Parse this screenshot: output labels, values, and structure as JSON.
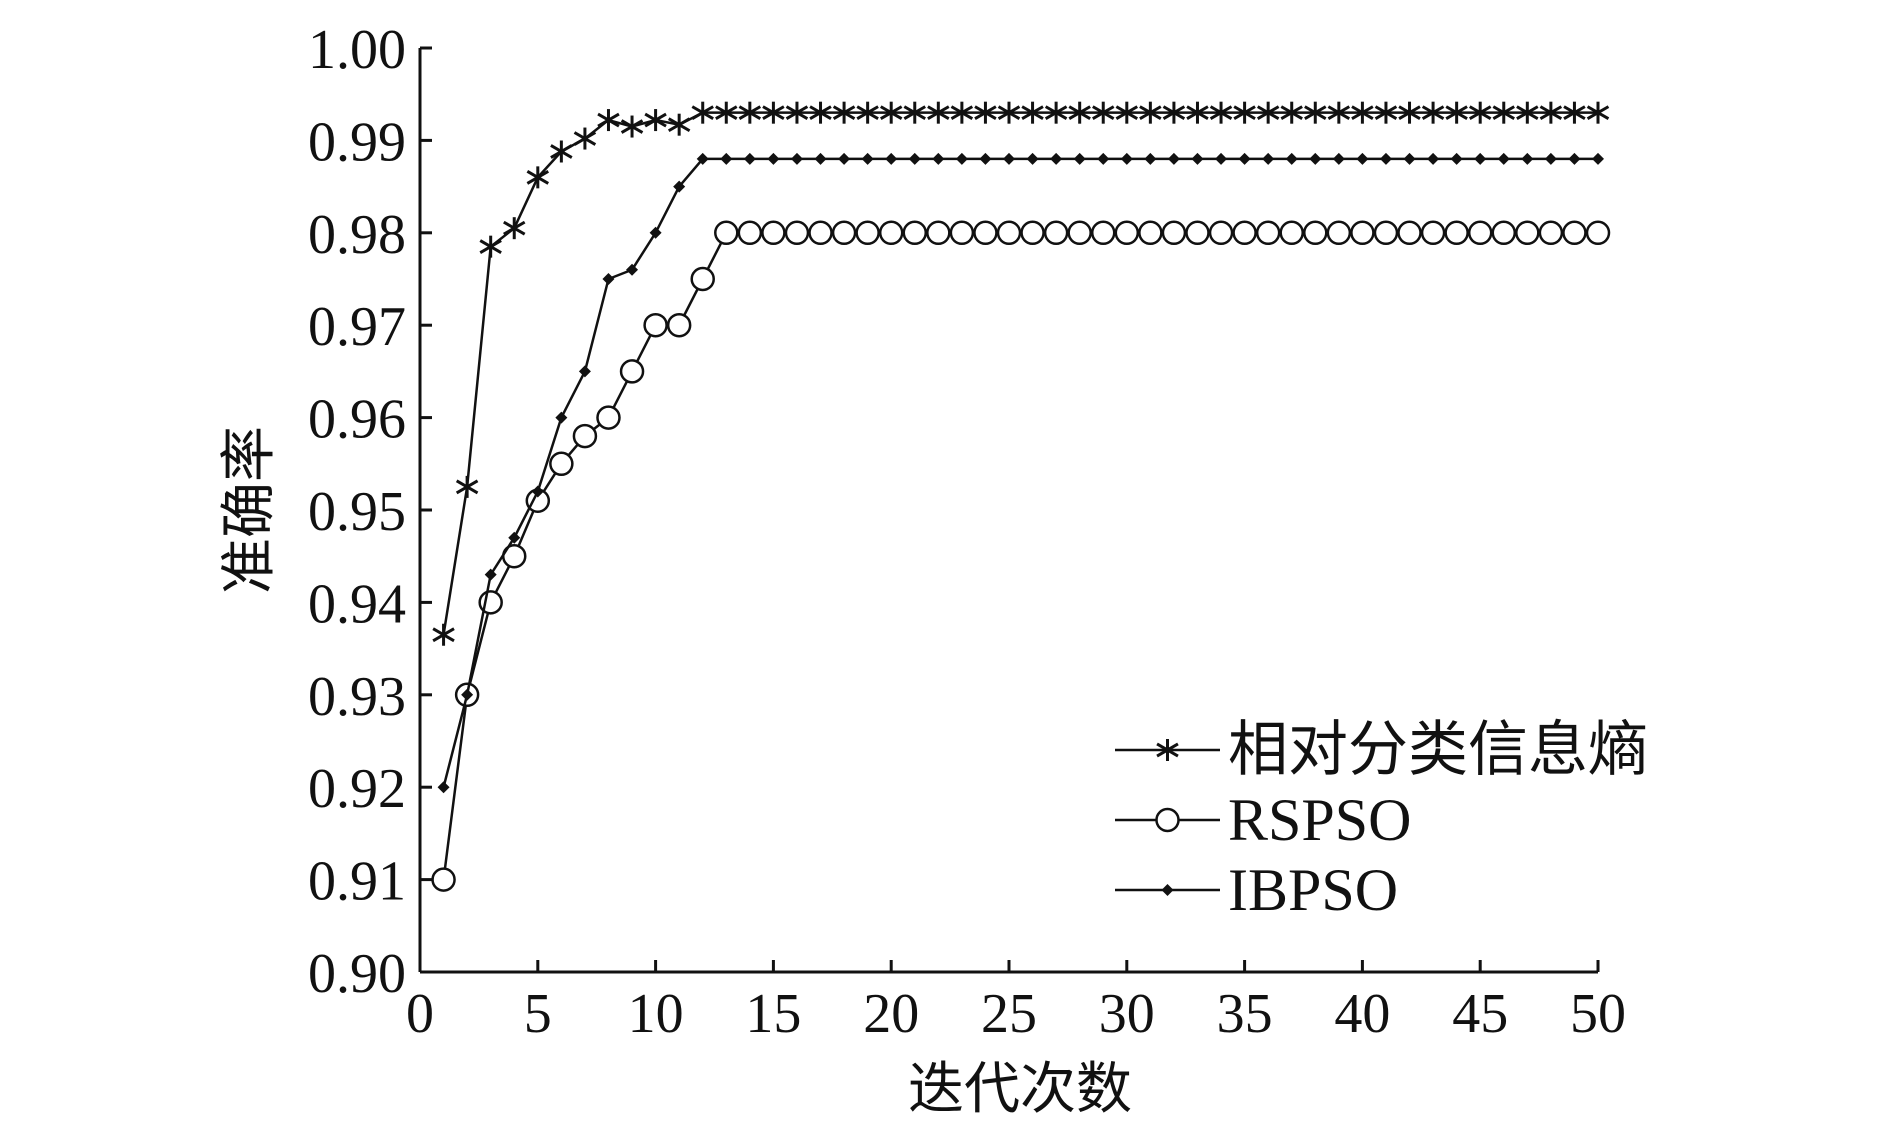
{
  "chart_data": {
    "type": "line",
    "xlabel": "迭代次数",
    "ylabel": "准确率",
    "xlim": [
      0,
      50
    ],
    "ylim": [
      0.9,
      1.0
    ],
    "xticks": [
      "0",
      "5",
      "10",
      "15",
      "20",
      "25",
      "30",
      "35",
      "40",
      "45",
      "50"
    ],
    "yticks": [
      "0.90",
      "0.91",
      "0.92",
      "0.93",
      "0.94",
      "0.95",
      "0.96",
      "0.97",
      "0.98",
      "0.99",
      "1.00"
    ],
    "grid": false,
    "legend_position": "bottom-right",
    "x": [
      1,
      2,
      3,
      4,
      5,
      6,
      7,
      8,
      9,
      10,
      11,
      12,
      13,
      14,
      15,
      16,
      17,
      18,
      19,
      20,
      21,
      22,
      23,
      24,
      25,
      26,
      27,
      28,
      29,
      30,
      31,
      32,
      33,
      34,
      35,
      36,
      37,
      38,
      39,
      40,
      41,
      42,
      43,
      44,
      45,
      46,
      47,
      48,
      49,
      50
    ],
    "series": [
      {
        "name": "相对分类信息熵",
        "marker": "asterisk",
        "values": [
          0.9365,
          0.9525,
          0.9785,
          0.9805,
          0.986,
          0.9888,
          0.9902,
          0.9922,
          0.9915,
          0.9922,
          0.9917,
          0.993,
          0.993,
          0.993,
          0.993,
          0.993,
          0.993,
          0.993,
          0.993,
          0.993,
          0.993,
          0.993,
          0.993,
          0.993,
          0.993,
          0.993,
          0.993,
          0.993,
          0.993,
          0.993,
          0.993,
          0.993,
          0.993,
          0.993,
          0.993,
          0.993,
          0.993,
          0.993,
          0.993,
          0.993,
          0.993,
          0.993,
          0.993,
          0.993,
          0.993,
          0.993,
          0.993,
          0.993,
          0.993,
          0.993
        ]
      },
      {
        "name": "RSPSO",
        "marker": "circle",
        "values": [
          0.91,
          0.93,
          0.94,
          0.945,
          0.951,
          0.955,
          0.958,
          0.96,
          0.965,
          0.97,
          0.97,
          0.975,
          0.98,
          0.98,
          0.98,
          0.98,
          0.98,
          0.98,
          0.98,
          0.98,
          0.98,
          0.98,
          0.98,
          0.98,
          0.98,
          0.98,
          0.98,
          0.98,
          0.98,
          0.98,
          0.98,
          0.98,
          0.98,
          0.98,
          0.98,
          0.98,
          0.98,
          0.98,
          0.98,
          0.98,
          0.98,
          0.98,
          0.98,
          0.98,
          0.98,
          0.98,
          0.98,
          0.98,
          0.98,
          0.98
        ]
      },
      {
        "name": "IBPSO",
        "marker": "dot",
        "values": [
          0.92,
          0.93,
          0.943,
          0.947,
          0.952,
          0.96,
          0.965,
          0.975,
          0.976,
          0.98,
          0.985,
          0.988,
          0.988,
          0.988,
          0.988,
          0.988,
          0.988,
          0.988,
          0.988,
          0.988,
          0.988,
          0.988,
          0.988,
          0.988,
          0.988,
          0.988,
          0.988,
          0.988,
          0.988,
          0.988,
          0.988,
          0.988,
          0.988,
          0.988,
          0.988,
          0.988,
          0.988,
          0.988,
          0.988,
          0.988,
          0.988,
          0.988,
          0.988,
          0.988,
          0.988,
          0.988,
          0.988,
          0.988,
          0.988,
          0.988
        ]
      }
    ]
  }
}
